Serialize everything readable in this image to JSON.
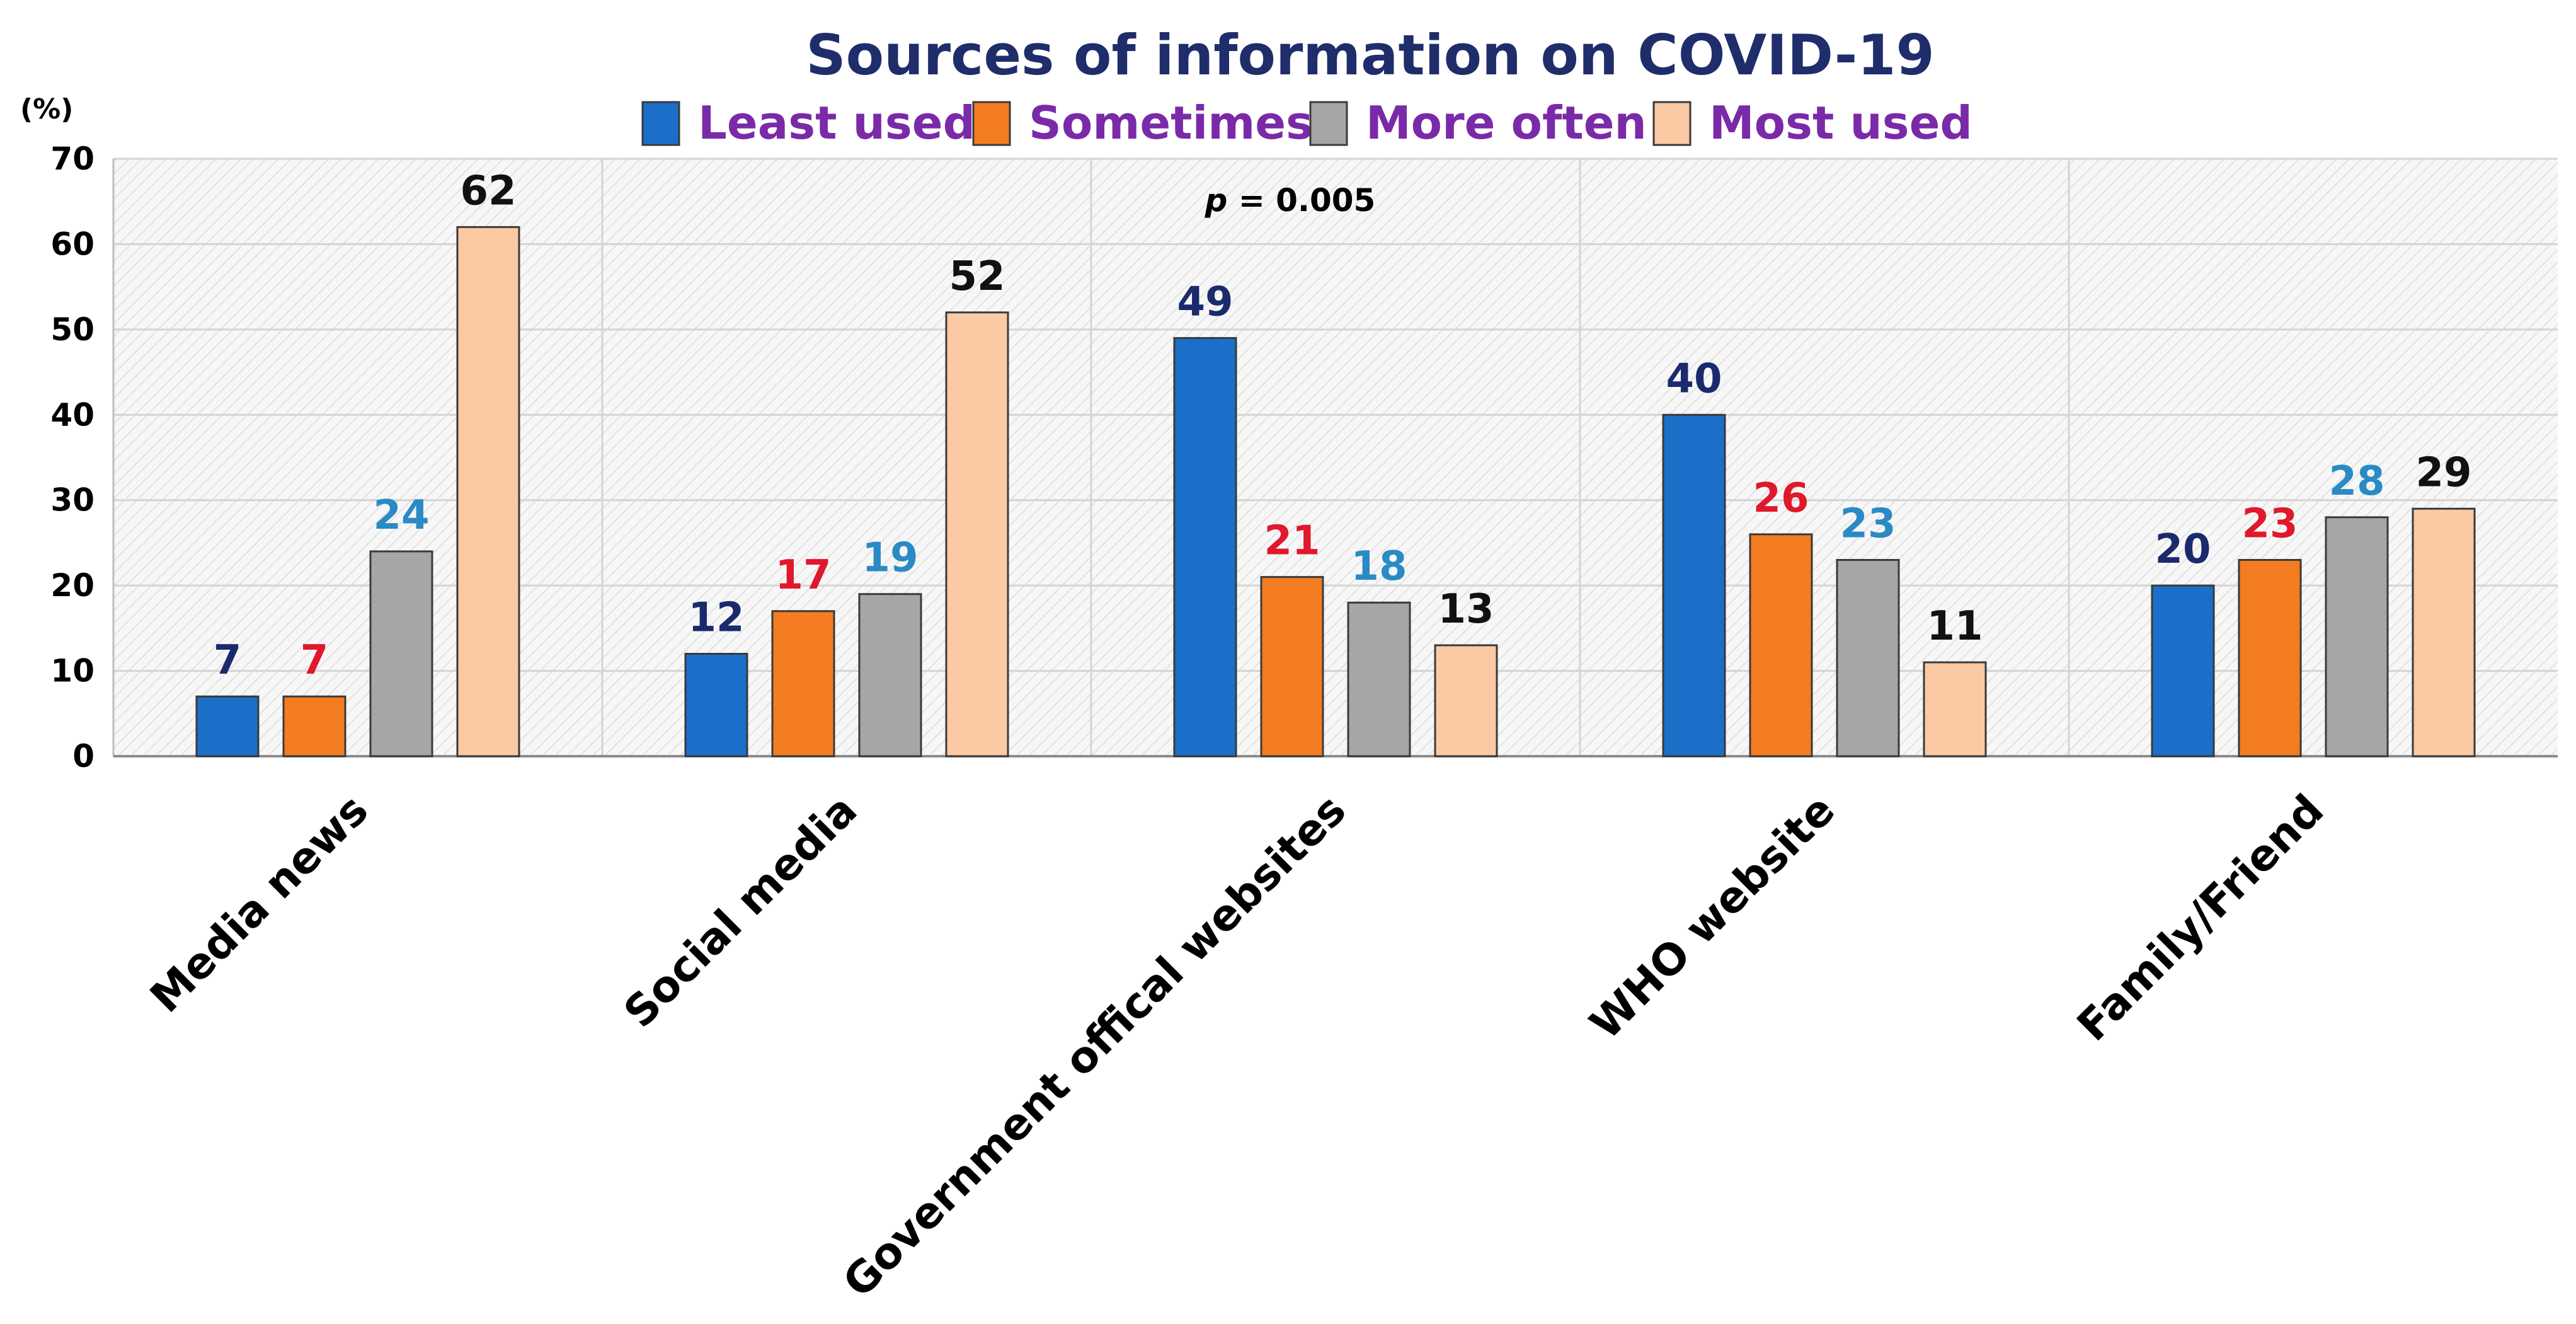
{
  "chart_data": {
    "type": "bar",
    "title": "Sources of information on COVID-19",
    "y_unit_label": "(%)",
    "ylim": [
      0,
      70
    ],
    "yticks": [
      0,
      10,
      20,
      30,
      40,
      50,
      60,
      70
    ],
    "grid": true,
    "legend_position": "top",
    "categories": [
      "Media news",
      "Social media",
      "Government offical websites",
      "WHO website",
      "Family/Friend"
    ],
    "series": [
      {
        "name": "Least used",
        "values": [
          7,
          12,
          49,
          40,
          20
        ],
        "color": "#1b6fc9",
        "label_color": "#1a2a6c"
      },
      {
        "name": "Sometimes",
        "values": [
          7,
          17,
          21,
          26,
          23
        ],
        "color": "#f47c20",
        "label_color": "#e0182b"
      },
      {
        "name": "More often",
        "values": [
          24,
          19,
          18,
          23,
          28
        ],
        "color": "#a6a6a6",
        "label_color": "#2a8ac4"
      },
      {
        "name": "Most used",
        "values": [
          62,
          52,
          13,
          11,
          29
        ],
        "color": "#fbc9a3",
        "label_color": "#111111"
      }
    ],
    "annotation": {
      "prefix": "p",
      "text": " = 0.005"
    }
  }
}
